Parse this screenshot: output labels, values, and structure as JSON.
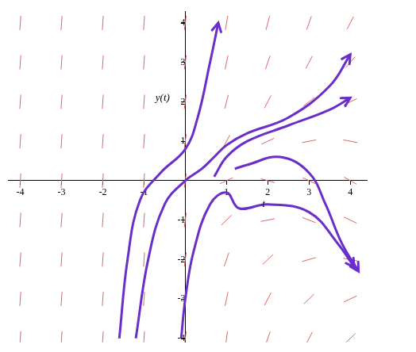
{
  "chart_data": {
    "type": "direction_field",
    "xlim": [
      -4.3,
      4.4
    ],
    "ylim": [
      -4.1,
      4.3
    ],
    "xticks": [
      -4,
      -3,
      -2,
      -1,
      1,
      2,
      3,
      4
    ],
    "yticks": [
      -4,
      -3,
      -2,
      -1,
      1,
      2,
      3,
      4
    ],
    "grid": false,
    "annotations": [
      {
        "text": "y(t)",
        "x": -0.55,
        "y": 2.1
      },
      {
        "text": "t",
        "x": 1.9,
        "y": -0.6
      }
    ],
    "field": {
      "color": "#e06666",
      "t": [
        -4,
        -3,
        -2,
        -1,
        0,
        1,
        2,
        3,
        4
      ],
      "y": [
        4,
        3,
        2,
        1,
        0,
        -1,
        -2,
        -3,
        -4
      ],
      "slopes": [
        [
          15,
          15,
          15,
          15,
          8,
          6,
          4,
          3,
          2
        ],
        [
          15,
          15,
          15,
          15,
          8,
          5,
          3,
          2,
          1.2
        ],
        [
          15,
          15,
          15,
          15,
          8,
          4,
          2,
          0.8,
          0.5
        ],
        [
          15,
          15,
          15,
          15,
          8,
          2,
          0.5,
          0.2,
          -0.2
        ],
        [
          15,
          15,
          15,
          15,
          8,
          0.5,
          -0.3,
          -0.5,
          -0.6
        ],
        [
          15,
          15,
          15,
          15,
          8,
          1,
          0.2,
          -0.4,
          -0.5
        ],
        [
          15,
          15,
          15,
          15,
          8,
          3,
          1,
          0.3,
          -0.2
        ],
        [
          15,
          15,
          15,
          15,
          8,
          5,
          2,
          1,
          0.5
        ],
        [
          15,
          15,
          15,
          15,
          8,
          8,
          3,
          2,
          1
        ]
      ]
    },
    "series": [
      {
        "color": "#6a2fc8",
        "marker": "arrow",
        "x": [
          -1.6,
          -1.4,
          -1.1,
          -0.6,
          0,
          0.3,
          0.6,
          0.8
        ],
        "values": [
          -4,
          -2,
          -0.5,
          0.2,
          0.8,
          1.6,
          3,
          4
        ]
      },
      {
        "color": "#6a2fc8",
        "marker": "arrow",
        "x": [
          -1.2,
          -0.9,
          -0.5,
          0,
          0.4,
          0.7,
          1,
          1.5,
          2.5,
          3.5,
          4
        ],
        "values": [
          -4,
          -2,
          -0.6,
          0,
          0.3,
          0.6,
          0.9,
          1.2,
          1.6,
          2.4,
          3.2
        ]
      },
      {
        "color": "#6a2fc8",
        "marker": "arrow",
        "x": [
          0.7,
          1,
          1.5,
          2.5,
          3.5,
          4
        ],
        "values": [
          0.1,
          0.6,
          1,
          1.4,
          1.8,
          2.1
        ]
      },
      {
        "color": "#6a2fc8",
        "marker": "arrow",
        "x": [
          -0.1,
          0,
          0.2,
          0.6,
          1,
          1.3,
          2,
          3,
          3.7,
          4.1
        ],
        "values": [
          -4,
          -3,
          -1.8,
          -0.6,
          -0.3,
          -0.7,
          -0.6,
          -0.8,
          -1.6,
          -2.2
        ]
      },
      {
        "color": "#6a2fc8",
        "marker": "arrow",
        "x": [
          1.2,
          1.5,
          2.3,
          3,
          3.4,
          3.8,
          4.2
        ],
        "values": [
          0.3,
          0.4,
          0.6,
          0.2,
          -0.6,
          -1.6,
          -2.3
        ]
      }
    ]
  }
}
